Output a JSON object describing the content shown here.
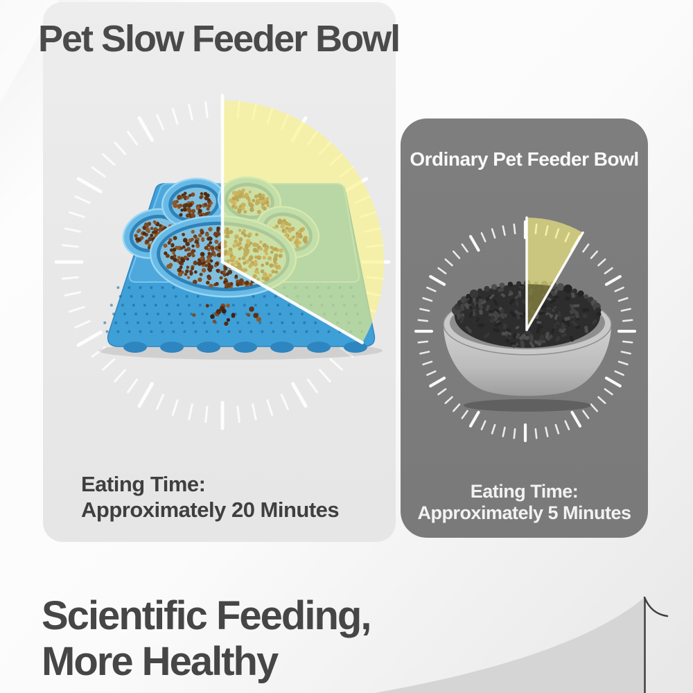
{
  "comparison": {
    "left": {
      "title": "Pet Slow Feeder Bowl",
      "eating_time_label": "Eating Time:",
      "eating_time_value": "Approximately 20 Minutes",
      "minutes": 20
    },
    "right": {
      "title": "Ordinary Pet Feeder Bowl",
      "eating_time_label": "Eating Time:",
      "eating_time_value": "Approximately 5 Minutes",
      "minutes": 5
    }
  },
  "footer": {
    "line1": "Scientific Feeding,",
    "line2": "More Healthy"
  },
  "icons": {
    "left_clock": "clock-wedge-20min",
    "right_clock": "clock-wedge-5min",
    "left_product": "paw-slow-feeder-mat",
    "right_product": "ordinary-pet-bowl",
    "decor": "background-swoosh"
  },
  "colors": {
    "accent_yellow": "#faf382",
    "panel_left_bg": "#e9e9e9",
    "panel_right_bg": "#7b7b7b",
    "heading_text": "#4a4a4a",
    "footer_text": "#464646",
    "white_text": "#f2f2f2",
    "tick_white": "#ffffff",
    "mat_blue": "#3fa0d8",
    "tray_blue": "#4fa8dc",
    "bowl_wall_blue": "#2e82b8",
    "bowl_rim_blue": "#9bd6f4",
    "kibble_brown": "#6f3f1d",
    "kibble_dark": "#333333",
    "bowl_gray": "#c9c9c9",
    "swoosh_gray": "#d5d5d5"
  }
}
